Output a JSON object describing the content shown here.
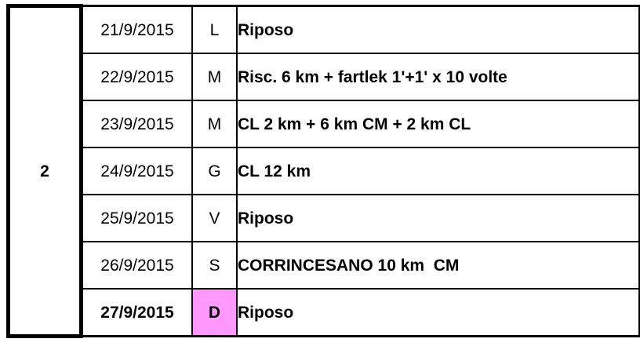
{
  "week": {
    "number": "2"
  },
  "colors": {
    "date_cell_green": "#ccffcc",
    "sunday_pink": "#ff99ff",
    "border_black": "#000000",
    "text_black": "#000000",
    "background_white": "#ffffff"
  },
  "rows": [
    {
      "date": "21/9/2015",
      "day": "L",
      "activity": "Riposo"
    },
    {
      "date": "22/9/2015",
      "day": "M",
      "activity": "Risc. 6 km + fartlek 1'+1' x 10 volte"
    },
    {
      "date": "23/9/2015",
      "day": "M",
      "activity": "CL 2 km + 6 km CM + 2 km CL"
    },
    {
      "date": "24/9/2015",
      "day": "G",
      "activity": "CL 12 km"
    },
    {
      "date": "25/9/2015",
      "day": "V",
      "activity": "Riposo"
    },
    {
      "date": "26/9/2015",
      "day": "S",
      "activity": "CORRINCESANO 10 km  CM"
    },
    {
      "date": "27/9/2015",
      "day": "D",
      "activity": "Riposo"
    }
  ]
}
